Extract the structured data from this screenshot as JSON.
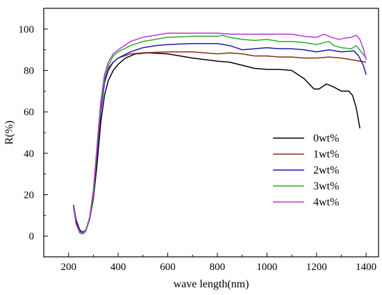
{
  "chart_data": {
    "type": "line",
    "xlabel": "wave length(nm)",
    "ylabel": "R(%)",
    "xlim": [
      100,
      1450
    ],
    "ylim": [
      -10,
      110
    ],
    "xticks": [
      200,
      400,
      600,
      800,
      1000,
      1200,
      1400
    ],
    "yticks": [
      0,
      20,
      40,
      60,
      80,
      100
    ],
    "grid": false,
    "legend_position": "right",
    "series": [
      {
        "name": "0wt%",
        "color": "#000000",
        "points": [
          [
            220,
            15
          ],
          [
            230,
            8
          ],
          [
            245,
            3
          ],
          [
            258,
            1.5
          ],
          [
            270,
            3
          ],
          [
            285,
            8
          ],
          [
            300,
            18
          ],
          [
            315,
            35
          ],
          [
            330,
            55
          ],
          [
            345,
            68
          ],
          [
            360,
            75
          ],
          [
            380,
            80
          ],
          [
            400,
            83
          ],
          [
            430,
            86
          ],
          [
            470,
            88
          ],
          [
            520,
            88.5
          ],
          [
            600,
            88
          ],
          [
            700,
            86
          ],
          [
            800,
            84.5
          ],
          [
            850,
            84
          ],
          [
            900,
            82.5
          ],
          [
            950,
            81
          ],
          [
            1000,
            80.5
          ],
          [
            1050,
            80.5
          ],
          [
            1100,
            80
          ],
          [
            1150,
            76
          ],
          [
            1190,
            71
          ],
          [
            1210,
            71
          ],
          [
            1240,
            73.5
          ],
          [
            1270,
            72
          ],
          [
            1300,
            70
          ],
          [
            1330,
            70
          ],
          [
            1345,
            68
          ],
          [
            1360,
            62
          ],
          [
            1375,
            52
          ]
        ]
      },
      {
        "name": "1wt%",
        "color": "#8b2a1a",
        "points": [
          [
            220,
            14
          ],
          [
            230,
            7
          ],
          [
            245,
            2.5
          ],
          [
            258,
            1.5
          ],
          [
            270,
            3
          ],
          [
            285,
            9
          ],
          [
            300,
            22
          ],
          [
            315,
            42
          ],
          [
            330,
            62
          ],
          [
            345,
            75
          ],
          [
            360,
            81
          ],
          [
            380,
            84
          ],
          [
            400,
            86
          ],
          [
            450,
            88
          ],
          [
            500,
            88.5
          ],
          [
            600,
            89
          ],
          [
            700,
            89
          ],
          [
            750,
            88.5
          ],
          [
            800,
            88
          ],
          [
            850,
            88.5
          ],
          [
            900,
            88
          ],
          [
            950,
            87
          ],
          [
            1000,
            87
          ],
          [
            1050,
            86.5
          ],
          [
            1100,
            86.5
          ],
          [
            1150,
            86
          ],
          [
            1200,
            86
          ],
          [
            1250,
            86.5
          ],
          [
            1300,
            86
          ],
          [
            1350,
            85
          ],
          [
            1400,
            84
          ]
        ]
      },
      {
        "name": "2wt%",
        "color": "#1a1aa8",
        "points": [
          [
            220,
            15
          ],
          [
            230,
            7
          ],
          [
            245,
            2.5
          ],
          [
            258,
            2
          ],
          [
            270,
            3
          ],
          [
            285,
            8
          ],
          [
            300,
            20
          ],
          [
            315,
            40
          ],
          [
            330,
            60
          ],
          [
            345,
            74
          ],
          [
            360,
            80
          ],
          [
            380,
            84
          ],
          [
            400,
            86
          ],
          [
            450,
            89
          ],
          [
            500,
            91
          ],
          [
            550,
            92
          ],
          [
            600,
            92.5
          ],
          [
            700,
            93
          ],
          [
            750,
            93
          ],
          [
            800,
            93
          ],
          [
            850,
            92
          ],
          [
            900,
            90
          ],
          [
            950,
            90.5
          ],
          [
            1000,
            91
          ],
          [
            1050,
            90.5
          ],
          [
            1100,
            90.5
          ],
          [
            1150,
            90
          ],
          [
            1200,
            89
          ],
          [
            1250,
            90
          ],
          [
            1300,
            89
          ],
          [
            1350,
            89.5
          ],
          [
            1370,
            87
          ],
          [
            1390,
            82
          ],
          [
            1400,
            78
          ]
        ]
      },
      {
        "name": "3wt%",
        "color": "#2fa82f",
        "points": [
          [
            220,
            14
          ],
          [
            230,
            6
          ],
          [
            245,
            1.5
          ],
          [
            258,
            1
          ],
          [
            270,
            2.5
          ],
          [
            285,
            8
          ],
          [
            300,
            20
          ],
          [
            315,
            42
          ],
          [
            330,
            63
          ],
          [
            345,
            76
          ],
          [
            360,
            82
          ],
          [
            380,
            87
          ],
          [
            400,
            89
          ],
          [
            450,
            92
          ],
          [
            500,
            94
          ],
          [
            550,
            95
          ],
          [
            600,
            96
          ],
          [
            700,
            96.5
          ],
          [
            800,
            96.5
          ],
          [
            820,
            97
          ],
          [
            850,
            96
          ],
          [
            900,
            95
          ],
          [
            950,
            94.5
          ],
          [
            1000,
            95
          ],
          [
            1050,
            94
          ],
          [
            1100,
            94
          ],
          [
            1150,
            93.5
          ],
          [
            1200,
            92.5
          ],
          [
            1250,
            94
          ],
          [
            1270,
            92
          ],
          [
            1300,
            91
          ],
          [
            1340,
            90.5
          ],
          [
            1360,
            92
          ],
          [
            1380,
            89
          ],
          [
            1400,
            86
          ]
        ]
      },
      {
        "name": "4wt%",
        "color": "#b03ad0",
        "points": [
          [
            220,
            14
          ],
          [
            230,
            6
          ],
          [
            245,
            2
          ],
          [
            258,
            1.5
          ],
          [
            270,
            3
          ],
          [
            285,
            9
          ],
          [
            300,
            22
          ],
          [
            315,
            44
          ],
          [
            330,
            65
          ],
          [
            345,
            78
          ],
          [
            360,
            84
          ],
          [
            380,
            88
          ],
          [
            400,
            90
          ],
          [
            450,
            94
          ],
          [
            500,
            96
          ],
          [
            550,
            97
          ],
          [
            600,
            98
          ],
          [
            700,
            98
          ],
          [
            800,
            98
          ],
          [
            850,
            97.5
          ],
          [
            900,
            97.5
          ],
          [
            950,
            97.5
          ],
          [
            1000,
            97.5
          ],
          [
            1050,
            97.5
          ],
          [
            1100,
            97.5
          ],
          [
            1150,
            96.5
          ],
          [
            1200,
            96
          ],
          [
            1230,
            97.5
          ],
          [
            1260,
            96
          ],
          [
            1290,
            95
          ],
          [
            1310,
            95.5
          ],
          [
            1340,
            96
          ],
          [
            1360,
            97
          ],
          [
            1375,
            95
          ],
          [
            1390,
            90
          ],
          [
            1400,
            85
          ]
        ]
      }
    ]
  }
}
